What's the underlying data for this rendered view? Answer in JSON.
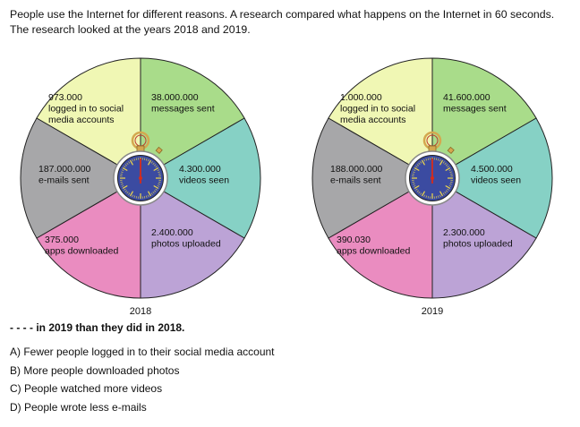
{
  "intro": "People use the Internet for different reasons. A research compared what happens on the Internet in 60 seconds. The research looked at the years 2018 and 2019.",
  "colors": {
    "social": "#f0f7b4",
    "messages": "#a9dc8a",
    "videos": "#86d1c5",
    "photos": "#bca3d6",
    "apps": "#ea8cc0",
    "emails": "#a7a7a9",
    "clock_face": "#3b4ba1",
    "clock_ticks": "#f0d848",
    "hand": "#d62b1a",
    "lid": "#d4a84f"
  },
  "icons": [
    "stopwatch-icon"
  ],
  "wheels": [
    {
      "year": "2018",
      "segments": [
        {
          "key": "social",
          "value": "973.000",
          "label": "logged in to social\nmedia accounts"
        },
        {
          "key": "messages",
          "value": "38.000.000",
          "label": "messages sent"
        },
        {
          "key": "videos",
          "value": "4.300.000",
          "label": "videos seen"
        },
        {
          "key": "photos",
          "value": "2.400.000",
          "label": "photos uploaded"
        },
        {
          "key": "apps",
          "value": "375.000",
          "label": "apps downloaded"
        },
        {
          "key": "emails",
          "value": "187.000.000",
          "label": "e-mails sent"
        }
      ]
    },
    {
      "year": "2019",
      "segments": [
        {
          "key": "social",
          "value": "1.000.000",
          "label": "logged in to social\nmedia accounts"
        },
        {
          "key": "messages",
          "value": "41.600.000",
          "label": "messages sent"
        },
        {
          "key": "videos",
          "value": "4.500.000",
          "label": "videos seen"
        },
        {
          "key": "photos",
          "value": "2.300.000",
          "label": "photos uploaded"
        },
        {
          "key": "apps",
          "value": "390.030",
          "label": "apps downloaded"
        },
        {
          "key": "emails",
          "value": "188.000.000",
          "label": "e-mails sent"
        }
      ]
    }
  ],
  "question": "- - - - in 2019 than they did in 2018.",
  "options": [
    "A) Fewer people logged in to their social media account",
    "B) More people downloaded photos",
    "C) People watched more videos",
    "D) People wrote less e-mails"
  ]
}
